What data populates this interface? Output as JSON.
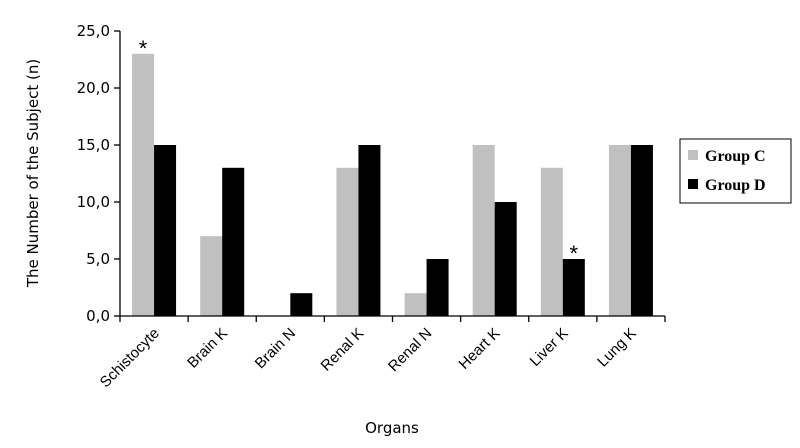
{
  "chart_data": {
    "type": "bar",
    "ylabel": "The Number of the Subject (n)",
    "xlabel": "Organs",
    "categories": [
      "Schistocyte",
      "Brain K",
      "Brain N",
      "Renal K",
      "Renal N",
      "Heart K",
      "Liver K",
      "Lung K"
    ],
    "series": [
      {
        "name": "Group C",
        "color": "#c0c0c0",
        "values": [
          23,
          7,
          0,
          13,
          2,
          15,
          13,
          15
        ]
      },
      {
        "name": "Group D",
        "color": "#000000",
        "values": [
          15,
          13,
          2,
          15,
          5,
          10,
          5,
          15
        ]
      }
    ],
    "ylim": [
      0,
      25
    ],
    "yticks": [
      0,
      5,
      10,
      15,
      20,
      25
    ],
    "ytick_labels": [
      "0,0",
      "5,0",
      "10,0",
      "15,0",
      "20,0",
      "25,0"
    ],
    "grid": false,
    "legend_position": "right",
    "annotations": [
      {
        "text": "*",
        "category": "Schistocyte",
        "series": "Group C"
      },
      {
        "text": "*",
        "category": "Liver K",
        "series": "Group D"
      }
    ]
  }
}
